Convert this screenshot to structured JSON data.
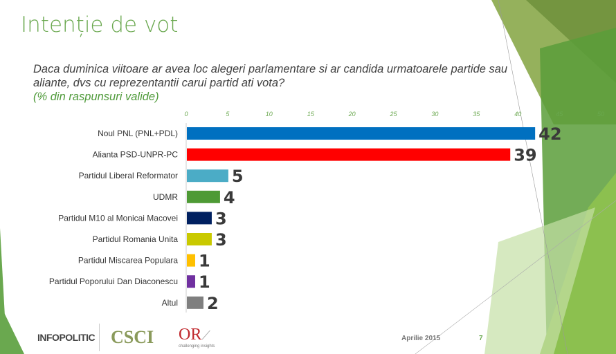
{
  "title": "Intenție de vot",
  "question": "Daca duminica viitoare ar avea loc alegeri parlamentare si ar candida urmatoarele partide sau aliante, dvs cu reprezentantii carui partid ati vota?",
  "note": "(% din raspunsuri valide)",
  "footer": {
    "date": "Aprilie 2015",
    "page": "7",
    "logos": [
      "INFOPOLITIC",
      "CSCI",
      "OR"
    ],
    "logo_tagline": "challenging insights"
  },
  "colors": {
    "accent": "#6aa84f"
  },
  "chart_data": {
    "type": "bar",
    "orientation": "horizontal",
    "categories": [
      "Noul PNL (PNL+PDL)",
      "Alianta PSD-UNPR-PC",
      "Partidul Liberal Reformator",
      "UDMR",
      "Partidul M10 al Monicai Macovei",
      "Partidul Romania Unita",
      "Partidul Miscarea Populara",
      "Partidul Poporului Dan Diaconescu",
      "Altul"
    ],
    "values": [
      42,
      39,
      5,
      4,
      3,
      3,
      1,
      1,
      2
    ],
    "colors": [
      "#0070c0",
      "#ff0000",
      "#4bacc6",
      "#4e9a35",
      "#002060",
      "#c9c900",
      "#ffc000",
      "#7030a0",
      "#7f7f7f"
    ],
    "xlim": [
      0,
      50
    ],
    "ticks": [
      0,
      5,
      10,
      15,
      20,
      25,
      30,
      35,
      40,
      45,
      50
    ],
    "grid": false,
    "data_labels": true
  }
}
